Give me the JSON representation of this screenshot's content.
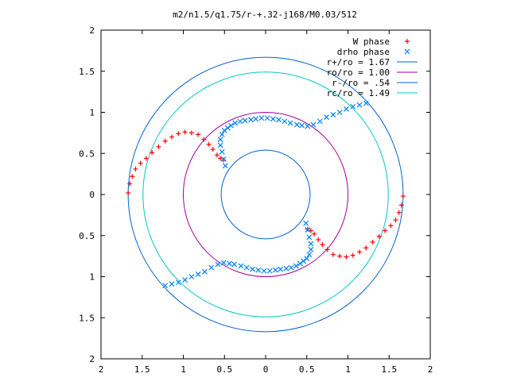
{
  "chart_data": {
    "type": "scatter",
    "title": "m2/n1.5/q1.75/r-+.32-j168/M0.03/512",
    "xlabel": "",
    "ylabel": "",
    "xlim": [
      -2,
      2
    ],
    "ylim": [
      -2,
      2
    ],
    "x_tick_values": [
      -2,
      -1.5,
      -1,
      -0.5,
      0,
      0.5,
      1,
      1.5,
      2
    ],
    "x_tick_labels": [
      "2",
      "1.5",
      "1",
      "0.5",
      "0",
      "0.5",
      "1",
      "1.5",
      "2"
    ],
    "y_tick_values": [
      2,
      1.5,
      1,
      0.5,
      0,
      -0.5,
      -1,
      -1.5,
      -2
    ],
    "y_tick_labels": [
      "2",
      "1.5",
      "1",
      "0.5",
      "0",
      "0.5",
      "1",
      "1.5",
      "2"
    ],
    "grid": false,
    "legend_position": "top-right",
    "series": [
      {
        "name": "W phase",
        "kind": "points",
        "marker": "plus",
        "color": "#ff0000",
        "x": [
          -1.67,
          -1.65,
          -1.62,
          -1.58,
          -1.52,
          -1.45,
          -1.38,
          -1.3,
          -1.22,
          -1.14,
          -1.06,
          -0.98,
          -0.9,
          -0.82,
          -0.75,
          -0.69,
          -0.64,
          -0.59,
          -0.55,
          -0.51,
          1.67,
          1.65,
          1.62,
          1.58,
          1.52,
          1.45,
          1.38,
          1.3,
          1.22,
          1.14,
          1.06,
          0.98,
          0.9,
          0.82,
          0.75,
          0.69,
          0.64,
          0.59,
          0.55,
          0.51
        ],
        "y": [
          0.02,
          0.13,
          0.22,
          0.31,
          0.38,
          0.44,
          0.51,
          0.58,
          0.65,
          0.7,
          0.74,
          0.76,
          0.75,
          0.73,
          0.67,
          0.61,
          0.55,
          0.48,
          0.44,
          0.42,
          -0.02,
          -0.13,
          -0.22,
          -0.31,
          -0.38,
          -0.44,
          -0.51,
          -0.58,
          -0.65,
          -0.7,
          -0.74,
          -0.76,
          -0.75,
          -0.73,
          -0.67,
          -0.61,
          -0.55,
          -0.48,
          -0.44,
          -0.42
        ]
      },
      {
        "name": "drho phase",
        "kind": "points",
        "marker": "cross",
        "color": "#0080ff",
        "x": [
          -0.49,
          -0.51,
          -0.53,
          -0.55,
          -0.55,
          -0.53,
          -0.5,
          -0.46,
          -0.42,
          -0.37,
          -0.31,
          -0.25,
          -0.18,
          -0.12,
          -0.05,
          0.02,
          0.09,
          0.16,
          0.23,
          0.3,
          0.38,
          0.44,
          0.51,
          0.58,
          0.66,
          0.74,
          0.82,
          0.9,
          0.98,
          1.06,
          1.14,
          1.22,
          0.49,
          0.51,
          0.53,
          0.55,
          0.55,
          0.53,
          0.5,
          0.46,
          0.42,
          0.37,
          0.31,
          0.25,
          0.18,
          0.12,
          0.05,
          -0.02,
          -0.09,
          -0.16,
          -0.23,
          -0.3,
          -0.38,
          -0.44,
          -0.51,
          -0.58,
          -0.66,
          -0.74,
          -0.82,
          -0.9,
          -0.98,
          -1.06,
          -1.14,
          -1.22
        ],
        "y": [
          0.35,
          0.43,
          0.52,
          0.6,
          0.67,
          0.73,
          0.78,
          0.81,
          0.84,
          0.87,
          0.89,
          0.9,
          0.91,
          0.92,
          0.93,
          0.93,
          0.92,
          0.91,
          0.89,
          0.87,
          0.85,
          0.84,
          0.83,
          0.85,
          0.89,
          0.94,
          0.97,
          1.0,
          1.04,
          1.07,
          1.09,
          1.11,
          -0.35,
          -0.43,
          -0.52,
          -0.6,
          -0.67,
          -0.73,
          -0.78,
          -0.81,
          -0.84,
          -0.87,
          -0.89,
          -0.9,
          -0.91,
          -0.92,
          -0.93,
          -0.93,
          -0.92,
          -0.91,
          -0.89,
          -0.87,
          -0.85,
          -0.84,
          -0.83,
          -0.85,
          -0.89,
          -0.94,
          -0.97,
          -1.0,
          -1.04,
          -1.07,
          -1.09,
          -1.11
        ]
      },
      {
        "name": "r+/ro = 1.67",
        "kind": "circle",
        "radius": 1.67,
        "color": "#0060d0"
      },
      {
        "name": "ro/ro = 1.00",
        "kind": "circle",
        "radius": 1.0,
        "color": "#a000a0"
      },
      {
        "name": "r-/ro = .54",
        "kind": "circle",
        "radius": 0.54,
        "color": "#0060d0"
      },
      {
        "name": "rc/ro = 1.49",
        "kind": "circle",
        "radius": 1.49,
        "color": "#00c8c8"
      }
    ]
  }
}
